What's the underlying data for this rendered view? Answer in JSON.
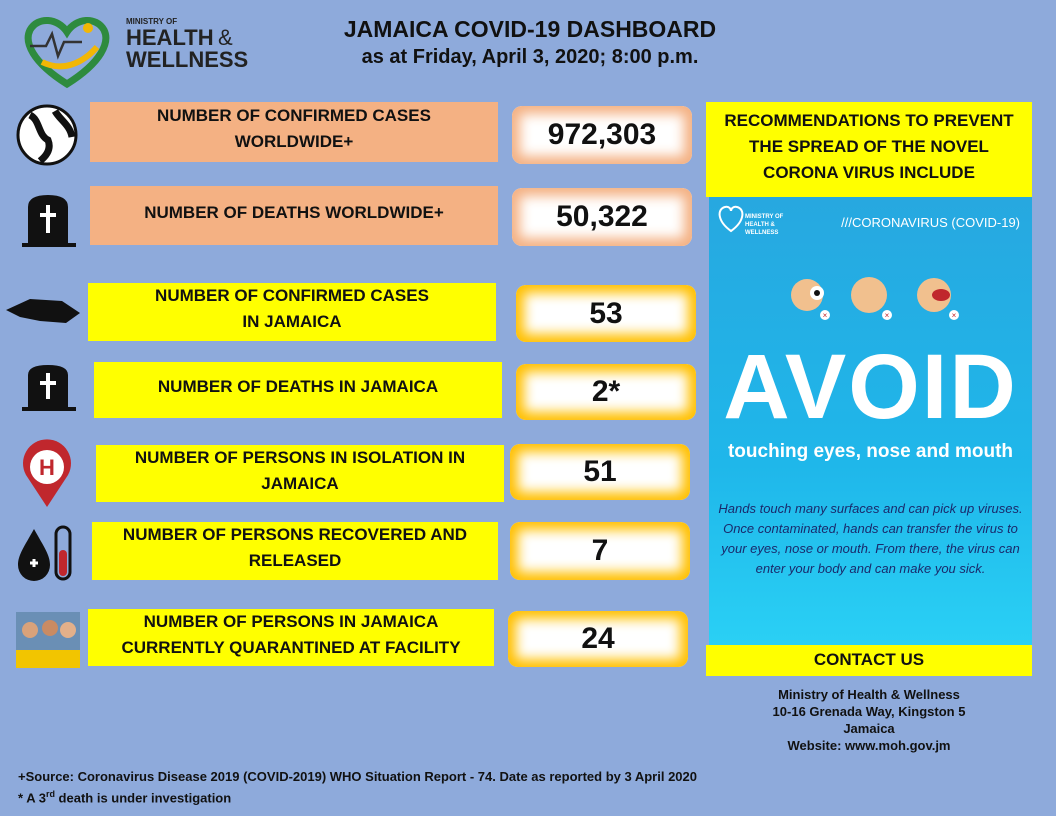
{
  "header": {
    "logo": {
      "line1": "MINISTRY OF",
      "line2": "HEALTH",
      "amp": "&",
      "line3": "WELLNESS"
    },
    "title": "JAMAICA COVID-19 DASHBOARD",
    "subtitle": "as at Friday, April 3, 2020; 8:00 p.m."
  },
  "stats": [
    {
      "label": [
        "NUMBER OF CONFIRMED CASES",
        "WORLDWIDE+"
      ],
      "value": "972,303"
    },
    {
      "label": [
        "NUMBER OF DEATHS WORLDWIDE+"
      ],
      "value": "50,322"
    },
    {
      "label": [
        "NUMBER OF CONFIRMED CASES",
        "IN JAMAICA"
      ],
      "value": "53"
    },
    {
      "label": [
        "NUMBER OF DEATHS IN JAMAICA"
      ],
      "value": "2*"
    },
    {
      "label": [
        "NUMBER OF PERSONS IN ISOLATION IN",
        "JAMAICA"
      ],
      "value": "51"
    },
    {
      "label": [
        "NUMBER OF PERSONS RECOVERED AND",
        "RELEASED"
      ],
      "value": "7"
    },
    {
      "label": [
        "NUMBER OF PERSONS IN JAMAICA",
        "CURRENTLY QUARANTINED AT FACILITY"
      ],
      "value": "24"
    }
  ],
  "recommendations": {
    "heading": [
      "RECOMMENDATIONS TO PREVENT",
      "THE SPREAD OF THE NOVEL",
      "CORONA VIRUS INCLUDE"
    ],
    "poster": {
      "logo": [
        "MINISTRY OF",
        "HEALTH &",
        "WELLNESS"
      ],
      "tag": "///CORONAVIRUS (COVID-19)",
      "headline": "AVOID",
      "subhead": "touching eyes, nose and mouth",
      "body": [
        "Hands touch many surfaces and can pick up viruses.",
        "Once contaminated, hands can transfer the virus to",
        "your eyes, nose or mouth. From there, the virus can",
        "enter your body and can make you sick."
      ]
    }
  },
  "contact": {
    "heading": "CONTACT US",
    "lines": [
      "Ministry of Health & Wellness",
      "10-16 Grenada Way, Kingston 5",
      "Jamaica",
      "Website: www.moh.gov.jm"
    ]
  },
  "footnotes": {
    "source": "+Source: Coronavirus Disease 2019 (COVID-2019) WHO Situation Report - 74. Date as reported by 3 April 2020",
    "note": {
      "before": "* A 3",
      "sup": "rd",
      "after": " death is under investigation"
    }
  }
}
